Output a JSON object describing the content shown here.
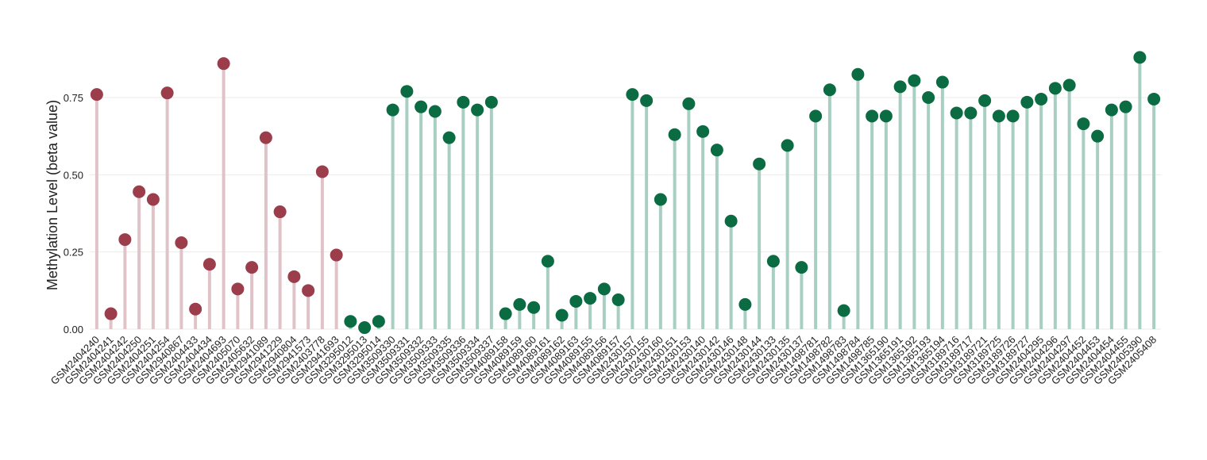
{
  "chart_data": {
    "type": "lollipop",
    "y_label": "Methylation Level (beta value)",
    "categories": [
      "GSM2404240",
      "GSM2404241",
      "GSM2404242",
      "GSM2404250",
      "GSM2404251",
      "GSM2404254",
      "GSM2940867",
      "GSM2404433",
      "GSM2404434",
      "GSM2404693",
      "GSM2405070",
      "GSM2405632",
      "GSM2941089",
      "GSM2941229",
      "GSM2940804",
      "GSM2941573",
      "GSM2403778",
      "GSM2941693",
      "GSM3295012",
      "GSM3295013",
      "GSM3295014",
      "GSM3509330",
      "GSM3509331",
      "GSM3509332",
      "GSM3509333",
      "GSM3509335",
      "GSM3509336",
      "GSM3509334",
      "GSM3509337",
      "GSM4089158",
      "GSM4089159",
      "GSM4089160",
      "GSM4089161",
      "GSM4089162",
      "GSM4089163",
      "GSM4089155",
      "GSM4089156",
      "GSM4089157",
      "GSM2430157",
      "GSM2430155",
      "GSM2430160",
      "GSM2430151",
      "GSM2430153",
      "GSM2430140",
      "GSM2430142",
      "GSM2430146",
      "GSM2430148",
      "GSM2430144",
      "GSM2430133",
      "GSM2430135",
      "GSM2430137",
      "GSM1498781",
      "GSM1498782",
      "GSM1498783",
      "GSM1498784",
      "GSM1498785",
      "GSM1365190",
      "GSM1365191",
      "GSM1365192",
      "GSM1365193",
      "GSM1365194",
      "GSM3189716",
      "GSM3189717",
      "GSM3189721",
      "GSM3189725",
      "GSM3189726",
      "GSM3189727",
      "GSM2404295",
      "GSM2404296",
      "GSM2404297",
      "GSM2404452",
      "GSM2404453",
      "GSM2404454",
      "GSM2404455",
      "GSM2405390",
      "GSM2405408"
    ],
    "series": [
      {
        "color": "#9b3d4b",
        "stem_color": "#dfc3c9",
        "values": [
          0.76,
          0.05,
          0.29,
          0.445,
          0.42,
          0.765,
          0.28,
          0.065,
          0.21,
          0.86,
          0.13,
          0.2,
          0.62,
          0.38,
          0.17,
          0.125,
          0.51,
          0.24,
          null,
          null,
          null,
          null,
          null,
          null,
          null,
          null,
          null,
          null,
          null,
          null,
          null,
          null,
          null,
          null,
          null,
          null,
          null,
          null,
          null,
          null,
          null,
          null,
          null,
          null,
          null,
          null,
          null,
          null,
          null,
          null,
          null,
          null,
          null,
          null,
          null,
          null,
          null,
          null,
          null,
          null,
          null,
          null,
          null,
          null,
          null,
          null,
          null,
          null,
          null,
          null,
          null,
          null,
          null,
          null,
          null,
          null
        ]
      },
      {
        "color": "#0b6b42",
        "stem_color": "#a9cfc3",
        "values": [
          null,
          null,
          null,
          null,
          null,
          null,
          null,
          null,
          null,
          null,
          null,
          null,
          null,
          null,
          null,
          null,
          null,
          null,
          0.025,
          0.005,
          0.025,
          0.71,
          0.77,
          0.72,
          0.705,
          0.62,
          0.735,
          0.71,
          0.735,
          0.05,
          0.08,
          0.07,
          0.22,
          0.045,
          0.09,
          0.1,
          0.13,
          0.095,
          0.76,
          0.74,
          0.42,
          0.63,
          0.73,
          0.64,
          0.58,
          0.35,
          0.08,
          0.535,
          0.22,
          0.595,
          0.2,
          0.69,
          0.775,
          0.06,
          0.825,
          0.69,
          0.69,
          0.785,
          0.805,
          0.75,
          0.8,
          0.7,
          0.7,
          0.74,
          0.69,
          0.69,
          0.735,
          0.745,
          0.78,
          0.79,
          0.665,
          0.625,
          0.71,
          0.72,
          0.88,
          0.745
        ]
      }
    ],
    "ylim": [
      0,
      0.9
    ],
    "yticks": [
      {
        "value": 0,
        "label": "0.00"
      },
      {
        "value": 0.25,
        "label": "0.25"
      },
      {
        "value": 0.5,
        "label": "0.50"
      },
      {
        "value": 0.75,
        "label": "0.75"
      }
    ],
    "grid": true
  }
}
